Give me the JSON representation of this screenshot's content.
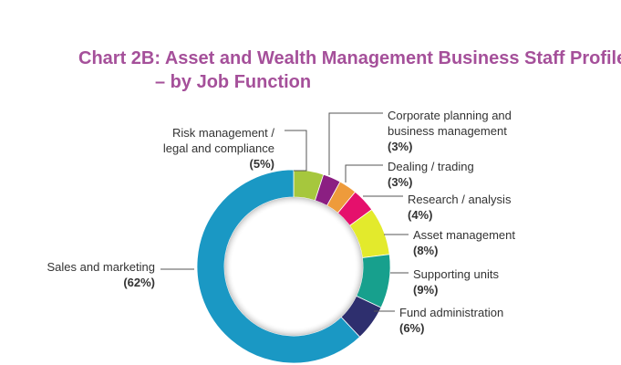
{
  "title_line1": "Chart 2B: Asset and Wealth Management Business Staff Profile",
  "title_line2": "– by Job Function",
  "chart_data": {
    "type": "pie",
    "variant": "donut",
    "title": "Chart 2B: Asset and Wealth Management Business Staff Profile – by Job Function",
    "unit": "%",
    "slices": [
      {
        "label": [
          "Risk management /",
          "legal and compliance"
        ],
        "pct_label": "(5%)",
        "value": 5,
        "color": "#a6c73d"
      },
      {
        "label": [
          "Corporate planning and",
          "business management"
        ],
        "pct_label": "(3%)",
        "value": 3,
        "color": "#8b1f82"
      },
      {
        "label": [
          "Dealing / trading"
        ],
        "pct_label": "(3%)",
        "value": 3,
        "color": "#ee9b3b"
      },
      {
        "label": [
          "Research / analysis"
        ],
        "pct_label": "(4%)",
        "value": 4,
        "color": "#e5106c"
      },
      {
        "label": [
          "Asset management"
        ],
        "pct_label": "(8%)",
        "value": 8,
        "color": "#e3ea2c"
      },
      {
        "label": [
          "Supporting units"
        ],
        "pct_label": "(9%)",
        "value": 9,
        "color": "#17a08d"
      },
      {
        "label": [
          "Fund administration"
        ],
        "pct_label": "(6%)",
        "value": 6,
        "color": "#2e2f6e"
      },
      {
        "label": [
          "Sales and marketing"
        ],
        "pct_label": "(62%)",
        "value": 62,
        "color": "#1a98c4"
      }
    ]
  }
}
